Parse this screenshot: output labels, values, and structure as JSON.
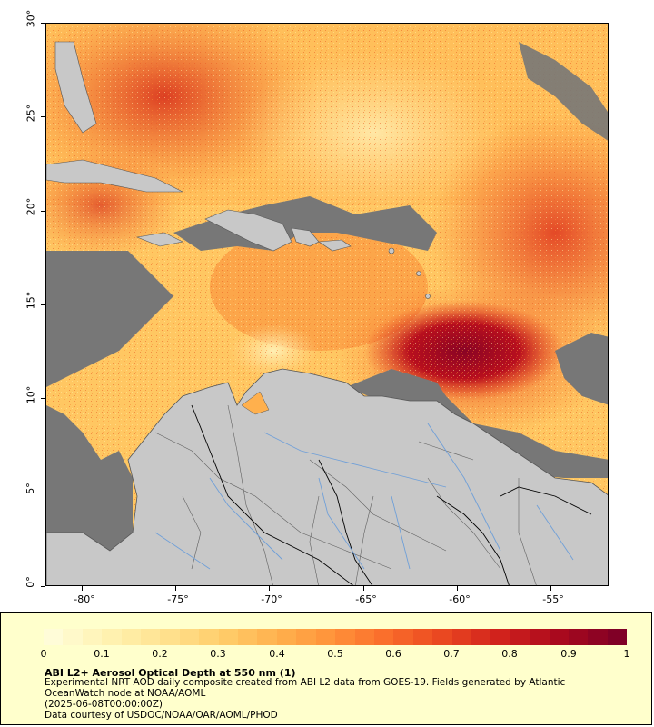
{
  "map": {
    "lat_ticks": [
      "30°",
      "25°",
      "20°",
      "15°",
      "10°",
      "5°",
      "0°"
    ],
    "lon_ticks": [
      "-80°",
      "-75°",
      "-70°",
      "-65°",
      "-60°",
      "-55°"
    ],
    "colors": {
      "land": "#c8c8c8",
      "no_data": "#777777",
      "water_lines": "#6f9fd8",
      "borders": "#555555"
    }
  },
  "legend": {
    "scale_ticks": [
      "0",
      "0.1",
      "0.2",
      "0.3",
      "0.4",
      "0.5",
      "0.6",
      "0.7",
      "0.8",
      "0.9",
      "1"
    ],
    "colormap": [
      "#fffcd8",
      "#fff2b0",
      "#ffe18f",
      "#ffcd6a",
      "#ffb04d",
      "#ff9038",
      "#f96a2a",
      "#e84420",
      "#cf1f1c",
      "#a8081e",
      "#800026"
    ],
    "title": "ABI L2+ Aerosol Optical Depth at 550 nm (1)",
    "line1": "Experimental NRT AOD daily composite created from ABI L2 data from GOES-19. Fields generated by Atlantic",
    "line2": "OceanWatch node at NOAA/AOML",
    "line3": "(2025-06-08T00:00:00Z)",
    "line4": "Data courtesy of USDOC/NOAA/OAR/AOML/PHOD"
  }
}
